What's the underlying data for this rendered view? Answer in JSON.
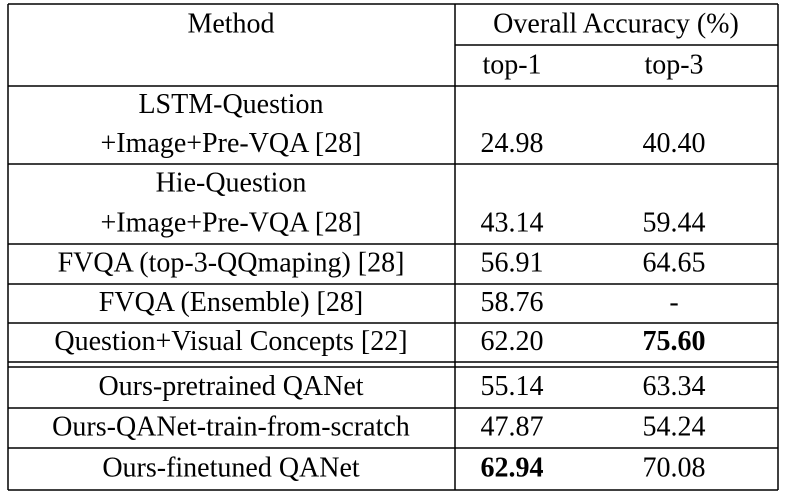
{
  "header": {
    "method": "Method",
    "overall": "Overall Accuracy (%)",
    "top1": "top-1",
    "top3": "top-3"
  },
  "rows": [
    {
      "method": [
        "LSTM-Question",
        "+Image+Pre-VQA [28]"
      ],
      "top1": "24.98",
      "top3": "40.40"
    },
    {
      "method": [
        "Hie-Question",
        "+Image+Pre-VQA [28]"
      ],
      "top1": "43.14",
      "top3": "59.44"
    },
    {
      "method": [
        "FVQA (top-3-QQmaping) [28]"
      ],
      "top1": "56.91",
      "top3": "64.65"
    },
    {
      "method": [
        "FVQA (Ensemble) [28]"
      ],
      "top1": "58.76",
      "top3": "-"
    },
    {
      "method": [
        "Question+Visual Concepts [22]"
      ],
      "top1": "62.20",
      "top3": "75.60"
    },
    {
      "method": [
        "Ours-pretrained QANet"
      ],
      "top1": "55.14",
      "top3": "63.34"
    },
    {
      "method": [
        "Ours-QANet-train-from-scratch"
      ],
      "top1": "47.87",
      "top3": "54.24"
    },
    {
      "method": [
        "Ours-finetuned QANet"
      ],
      "top1": "62.94",
      "top3": "70.08"
    }
  ]
}
